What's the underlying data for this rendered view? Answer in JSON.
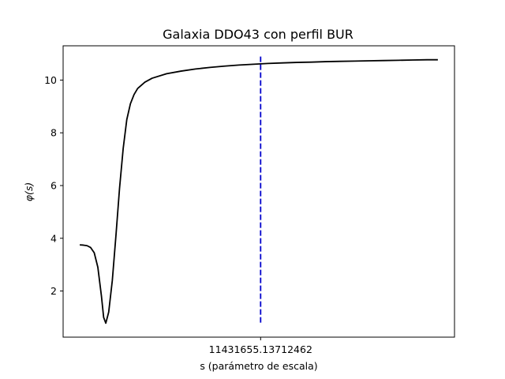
{
  "chart_data": {
    "type": "line",
    "title": "Galaxia DDO43 con perfil BUR",
    "xlabel": "s (parámetro de escala)",
    "ylabel": "φ(s)",
    "x_tick_labels": [
      "11431655.13712462"
    ],
    "y_ticks": [
      2,
      4,
      6,
      8,
      10
    ],
    "ylim": [
      0.25,
      11.3
    ],
    "grid": false,
    "series": [
      {
        "style": "solid",
        "color": "#000000",
        "points": [
          [
            0.0,
            3.75
          ],
          [
            0.05,
            3.74
          ],
          [
            0.1,
            3.72
          ],
          [
            0.15,
            3.65
          ],
          [
            0.2,
            3.45
          ],
          [
            0.25,
            2.9
          ],
          [
            0.3,
            1.8
          ],
          [
            0.33,
            1.0
          ],
          [
            0.36,
            0.78
          ],
          [
            0.4,
            1.2
          ],
          [
            0.45,
            2.4
          ],
          [
            0.5,
            4.1
          ],
          [
            0.55,
            5.9
          ],
          [
            0.6,
            7.4
          ],
          [
            0.65,
            8.5
          ],
          [
            0.7,
            9.1
          ],
          [
            0.75,
            9.45
          ],
          [
            0.8,
            9.68
          ],
          [
            0.9,
            9.92
          ],
          [
            1.0,
            10.07
          ],
          [
            1.2,
            10.24
          ],
          [
            1.4,
            10.34
          ],
          [
            1.6,
            10.42
          ],
          [
            1.8,
            10.48
          ],
          [
            2.0,
            10.53
          ],
          [
            2.2,
            10.57
          ],
          [
            2.4,
            10.6
          ],
          [
            2.6,
            10.63
          ],
          [
            2.8,
            10.65
          ],
          [
            3.0,
            10.67
          ],
          [
            3.2,
            10.68
          ],
          [
            3.4,
            10.7
          ],
          [
            3.6,
            10.71
          ],
          [
            3.8,
            10.72
          ],
          [
            4.0,
            10.73
          ],
          [
            4.2,
            10.74
          ],
          [
            4.4,
            10.75
          ],
          [
            4.6,
            10.76
          ],
          [
            4.8,
            10.77
          ],
          [
            4.95,
            10.77
          ]
        ]
      },
      {
        "style": "dashed",
        "color": "#0000cc",
        "points": [
          [
            2.5,
            0.8
          ],
          [
            2.5,
            10.9
          ]
        ]
      }
    ],
    "xlim": [
      -0.23,
      5.18
    ],
    "x_tick_values": [
      2.5
    ]
  }
}
